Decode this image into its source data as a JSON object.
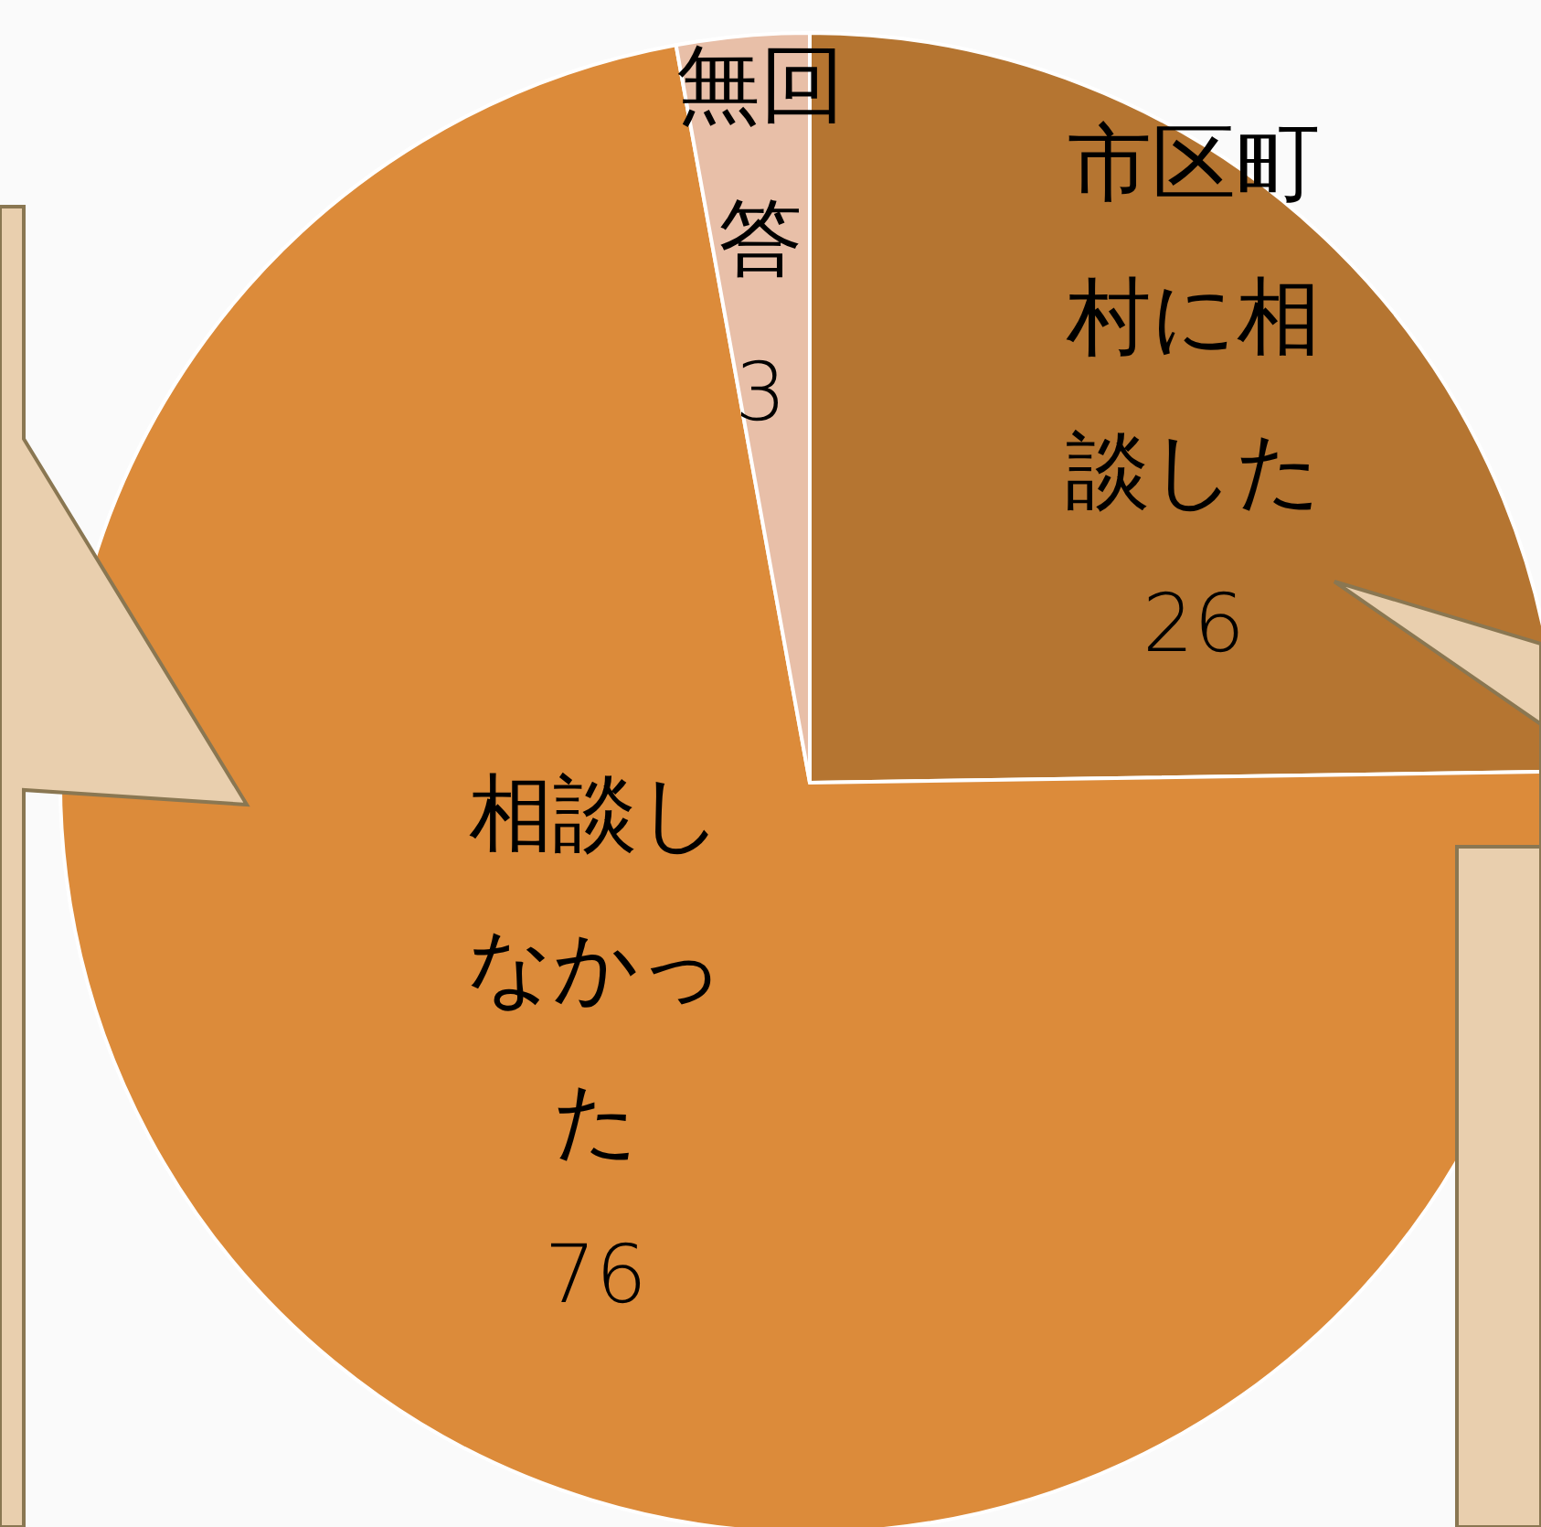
{
  "chart_data": {
    "type": "pie",
    "categories": [
      "市区町村に相談した",
      "相談しなかった",
      "無回答"
    ],
    "values": [
      26,
      76,
      3
    ],
    "colors": [
      "#b57531",
      "#dc8b3a",
      "#e8bfa8"
    ],
    "data_labels": true
  }
}
